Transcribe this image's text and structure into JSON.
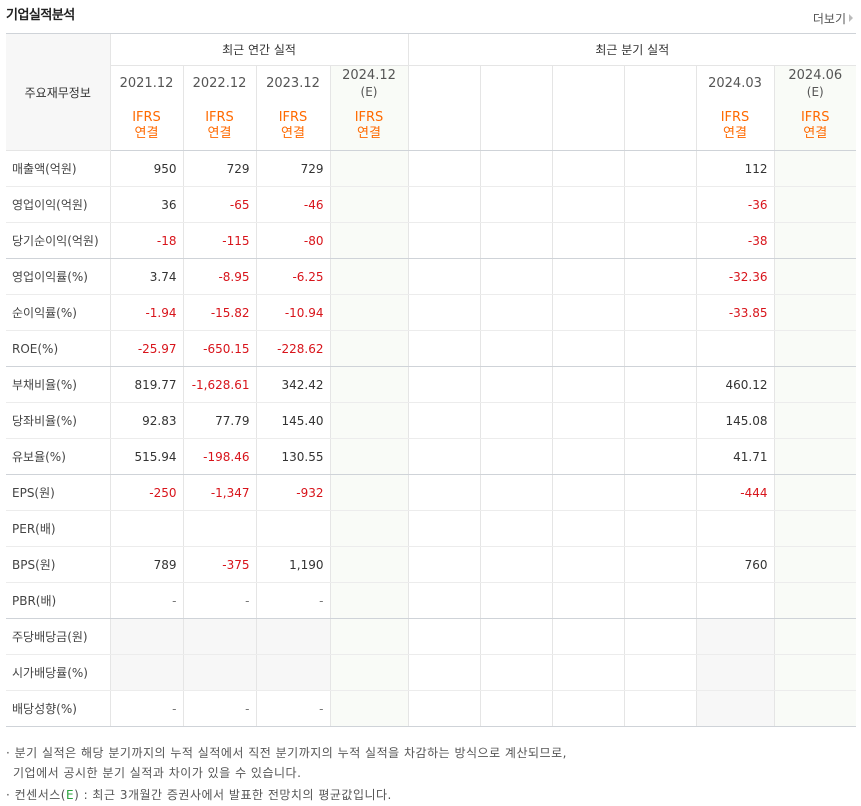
{
  "header": {
    "title": "기업실적분석",
    "more_label": "더보기"
  },
  "table": {
    "row_header_label": "주요재무정보",
    "annual_group_label": "최근 연간 실적",
    "quarter_group_label": "최근 분기 실적",
    "annual_periods": [
      "2021.12",
      "2022.12",
      "2023.12",
      "2024.12"
    ],
    "annual_estimate_mark": "(E)",
    "quarter_periods": [
      "",
      "",
      "",
      "",
      "2024.03",
      "2024.06"
    ],
    "quarter_estimate_mark": "(E)",
    "ifrs_label": "IFRS",
    "consolidated_label": "연결",
    "rows": [
      {
        "label": "매출액(억원)",
        "annual": [
          "950",
          "729",
          "729",
          ""
        ],
        "quarter": [
          "",
          "",
          "",
          "",
          "112",
          ""
        ]
      },
      {
        "label": "영업이익(억원)",
        "annual": [
          "36",
          "-65",
          "-46",
          ""
        ],
        "quarter": [
          "",
          "",
          "",
          "",
          "-36",
          ""
        ]
      },
      {
        "label": "당기순이익(억원)",
        "annual": [
          "-18",
          "-115",
          "-80",
          ""
        ],
        "quarter": [
          "",
          "",
          "",
          "",
          "-38",
          ""
        ]
      },
      {
        "label": "영업이익률(%)",
        "annual": [
          "3.74",
          "-8.95",
          "-6.25",
          ""
        ],
        "quarter": [
          "",
          "",
          "",
          "",
          "-32.36",
          ""
        ]
      },
      {
        "label": "순이익률(%)",
        "annual": [
          "-1.94",
          "-15.82",
          "-10.94",
          ""
        ],
        "quarter": [
          "",
          "",
          "",
          "",
          "-33.85",
          ""
        ]
      },
      {
        "label": "ROE(%)",
        "annual": [
          "-25.97",
          "-650.15",
          "-228.62",
          ""
        ],
        "quarter": [
          "",
          "",
          "",
          "",
          "",
          ""
        ]
      },
      {
        "label": "부채비율(%)",
        "annual": [
          "819.77",
          "-1,628.61",
          "342.42",
          ""
        ],
        "quarter": [
          "",
          "",
          "",
          "",
          "460.12",
          ""
        ]
      },
      {
        "label": "당좌비율(%)",
        "annual": [
          "92.83",
          "77.79",
          "145.40",
          ""
        ],
        "quarter": [
          "",
          "",
          "",
          "",
          "145.08",
          ""
        ]
      },
      {
        "label": "유보율(%)",
        "annual": [
          "515.94",
          "-198.46",
          "130.55",
          ""
        ],
        "quarter": [
          "",
          "",
          "",
          "",
          "41.71",
          ""
        ]
      },
      {
        "label": "EPS(원)",
        "annual": [
          "-250",
          "-1,347",
          "-932",
          ""
        ],
        "quarter": [
          "",
          "",
          "",
          "",
          "-444",
          ""
        ]
      },
      {
        "label": "PER(배)",
        "annual": [
          "",
          "",
          "",
          ""
        ],
        "quarter": [
          "",
          "",
          "",
          "",
          "",
          ""
        ]
      },
      {
        "label": "BPS(원)",
        "annual": [
          "789",
          "-375",
          "1,190",
          ""
        ],
        "quarter": [
          "",
          "",
          "",
          "",
          "760",
          ""
        ]
      },
      {
        "label": "PBR(배)",
        "annual": [
          "-",
          "-",
          "-",
          ""
        ],
        "quarter": [
          "",
          "",
          "",
          "",
          "",
          ""
        ]
      },
      {
        "label": "주당배당금(원)",
        "annual": [
          "",
          "",
          "",
          ""
        ],
        "quarter": [
          "",
          "",
          "",
          "",
          "",
          ""
        ]
      },
      {
        "label": "시가배당률(%)",
        "annual": [
          "",
          "",
          "",
          ""
        ],
        "quarter": [
          "",
          "",
          "",
          "",
          "",
          ""
        ]
      },
      {
        "label": "배당성향(%)",
        "annual": [
          "-",
          "-",
          "-",
          ""
        ],
        "quarter": [
          "",
          "",
          "",
          "",
          "",
          ""
        ]
      }
    ]
  },
  "notes": {
    "line1": "분기 실적은 해당 분기까지의 누적 실적에서 직전 분기까지의 누적 실적을 차감하는 방식으로 계산되므로,",
    "line2": "기업에서 공시한 분기 실적과 차이가 있을 수 있습니다.",
    "line3_prefix": "컨센서스(",
    "line3_e": "E",
    "line3_suffix": ") : 최근 3개월간 증권사에서 발표한 전망치의 평균값입니다."
  },
  "colors": {
    "negative": "#d8141b",
    "ifrs": "#ff6a00",
    "estimate": "#2aa33d"
  }
}
